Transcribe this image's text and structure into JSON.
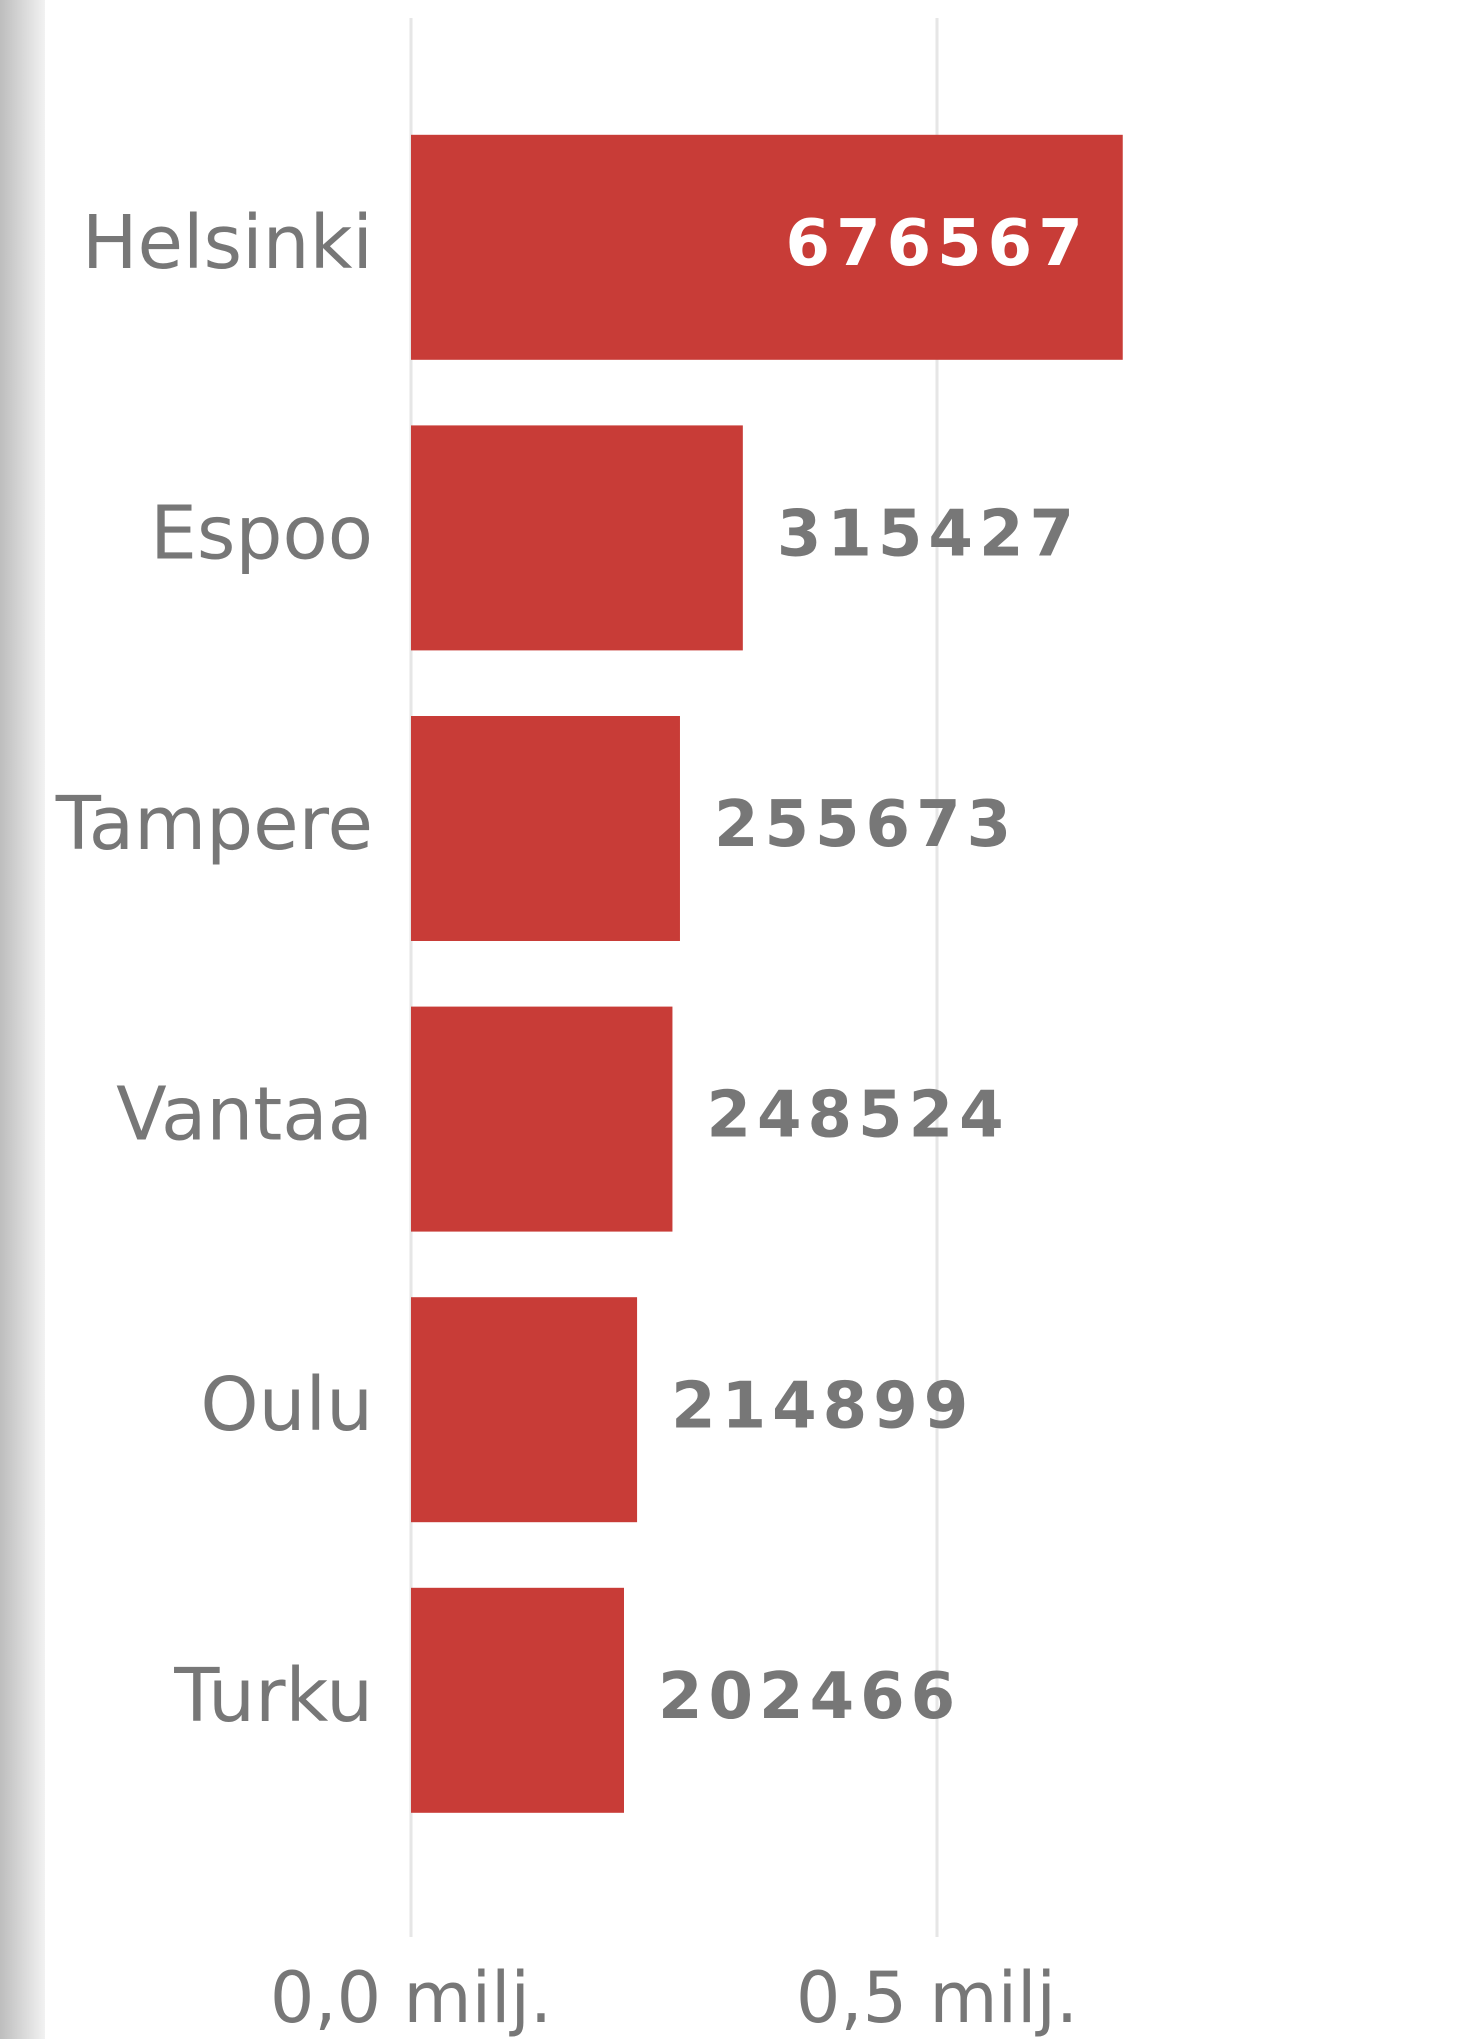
{
  "chart_data": {
    "type": "bar",
    "orientation": "horizontal",
    "categories": [
      "Helsinki",
      "Espoo",
      "Tampere",
      "Vantaa",
      "Oulu",
      "Turku"
    ],
    "values": [
      676567,
      315427,
      255673,
      248524,
      214899,
      202466
    ],
    "color": "#c83c37",
    "xlim": [
      0,
      1000000
    ],
    "xticks": [
      {
        "value": 0,
        "label": "0,0 milj."
      },
      {
        "value": 500000,
        "label": "0,5 milj."
      }
    ],
    "grid": true
  }
}
